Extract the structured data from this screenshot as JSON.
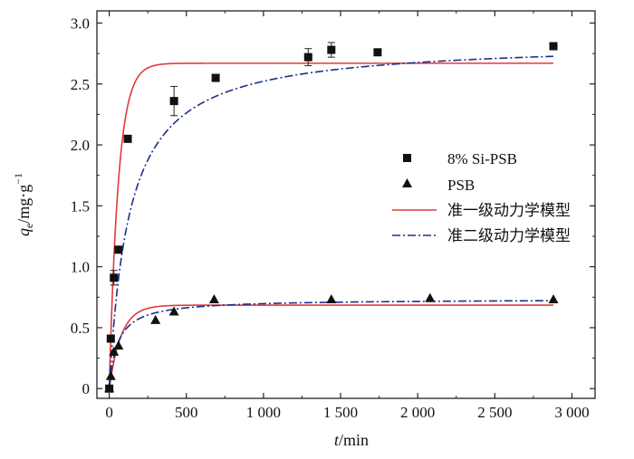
{
  "chart_data": {
    "type": "scatter",
    "xlabel_italic": "t",
    "xlabel_rest": "/min",
    "ylabel_italic": "q",
    "ylabel_sub": "e",
    "ylabel_rest": "/mg·g",
    "ylabel_sup": "−1",
    "xlim": [
      -80,
      3150
    ],
    "ylim": [
      -0.08,
      3.1
    ],
    "xticks": [
      0,
      500,
      1000,
      1500,
      2000,
      2500,
      3000
    ],
    "xtick_labels": [
      "0",
      "500",
      "1 000",
      "1 500",
      "2 000",
      "2 500",
      "3 000"
    ],
    "yticks": [
      0,
      0.5,
      1.0,
      1.5,
      2.0,
      2.5,
      3.0
    ],
    "ytick_labels": [
      "0",
      "0.5",
      "1.0",
      "1.5",
      "2.0",
      "2.5",
      "3.0"
    ],
    "legend_position": "right-center",
    "series": [
      {
        "name": "8% Si-PSB",
        "marker": "square",
        "color": "#111111",
        "x": [
          0,
          10,
          30,
          60,
          120,
          420,
          690,
          1290,
          1440,
          1740,
          2880
        ],
        "y": [
          0.0,
          0.41,
          0.91,
          1.14,
          2.05,
          2.36,
          2.55,
          2.72,
          2.78,
          2.76,
          2.81
        ],
        "err": [
          0,
          0,
          0.06,
          0,
          0,
          0.12,
          0,
          0.07,
          0.06,
          0,
          0
        ]
      },
      {
        "name": "PSB",
        "marker": "triangle",
        "color": "#111111",
        "x": [
          0,
          10,
          30,
          60,
          300,
          420,
          680,
          1440,
          2080,
          2880
        ],
        "y": [
          0.0,
          0.1,
          0.3,
          0.35,
          0.56,
          0.63,
          0.73,
          0.73,
          0.74,
          0.73
        ],
        "err": []
      }
    ],
    "fits": [
      {
        "name": "准一级动力学模型",
        "style": "solid",
        "color": "#e23a36",
        "model": "pfo",
        "curves": [
          {
            "qe": 2.67,
            "k": 0.017
          },
          {
            "qe": 0.685,
            "k": 0.013
          }
        ]
      },
      {
        "name": "准二级动力学模型",
        "style": "dashdot",
        "color": "#1c2f8f",
        "model": "pso",
        "curves": [
          {
            "qe": 2.85,
            "k": 0.0027
          },
          {
            "qe": 0.735,
            "k": 0.025
          }
        ]
      }
    ],
    "x_max_fit": 2880
  }
}
